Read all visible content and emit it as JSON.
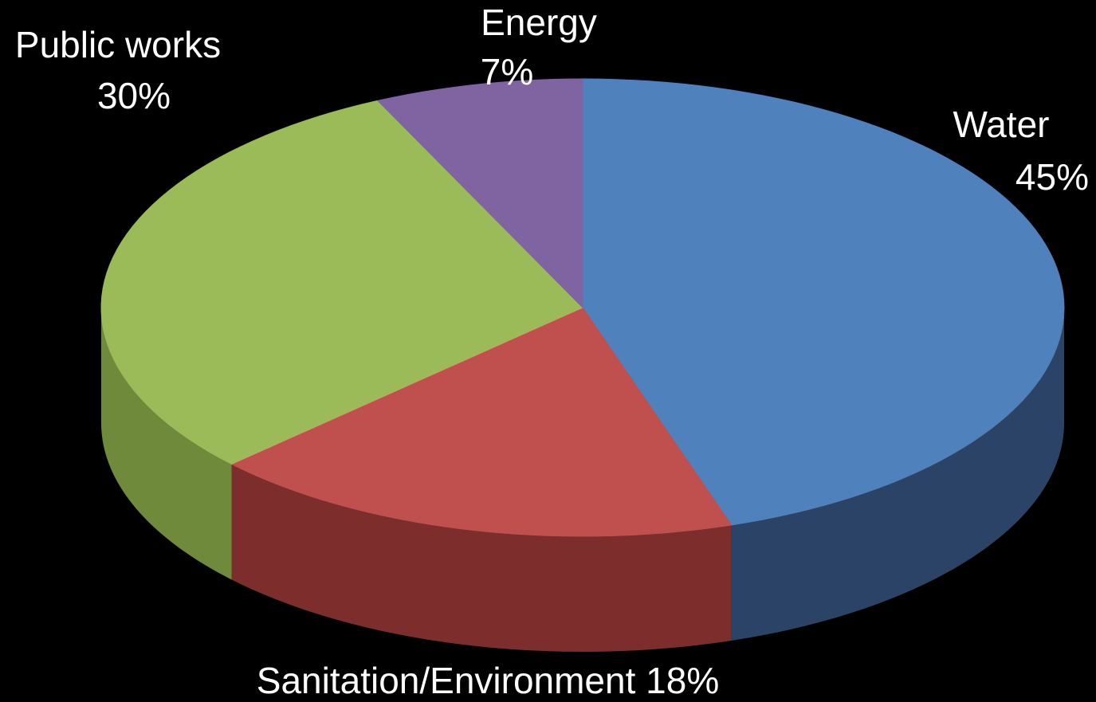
{
  "chart_data": {
    "type": "pie",
    "style": "3d",
    "title": "",
    "slices": [
      {
        "name": "Water",
        "value": 45,
        "label_pct": "45%",
        "color": "#4f81bd",
        "side_color": "#2b4366"
      },
      {
        "name": "Sanitation/Environment",
        "value": 18,
        "label_pct": "18%",
        "color": "#c0504d",
        "side_color": "#7d2d2b"
      },
      {
        "name": "Public works",
        "value": 30,
        "label_pct": "30%",
        "color": "#9bbb59",
        "side_color": "#6f8a3a"
      },
      {
        "name": "Energy",
        "value": 7,
        "label_pct": "7%",
        "color": "#8064a2",
        "side_color": "#5a4574"
      }
    ],
    "background": "#000000",
    "label_color": "#ffffff"
  }
}
